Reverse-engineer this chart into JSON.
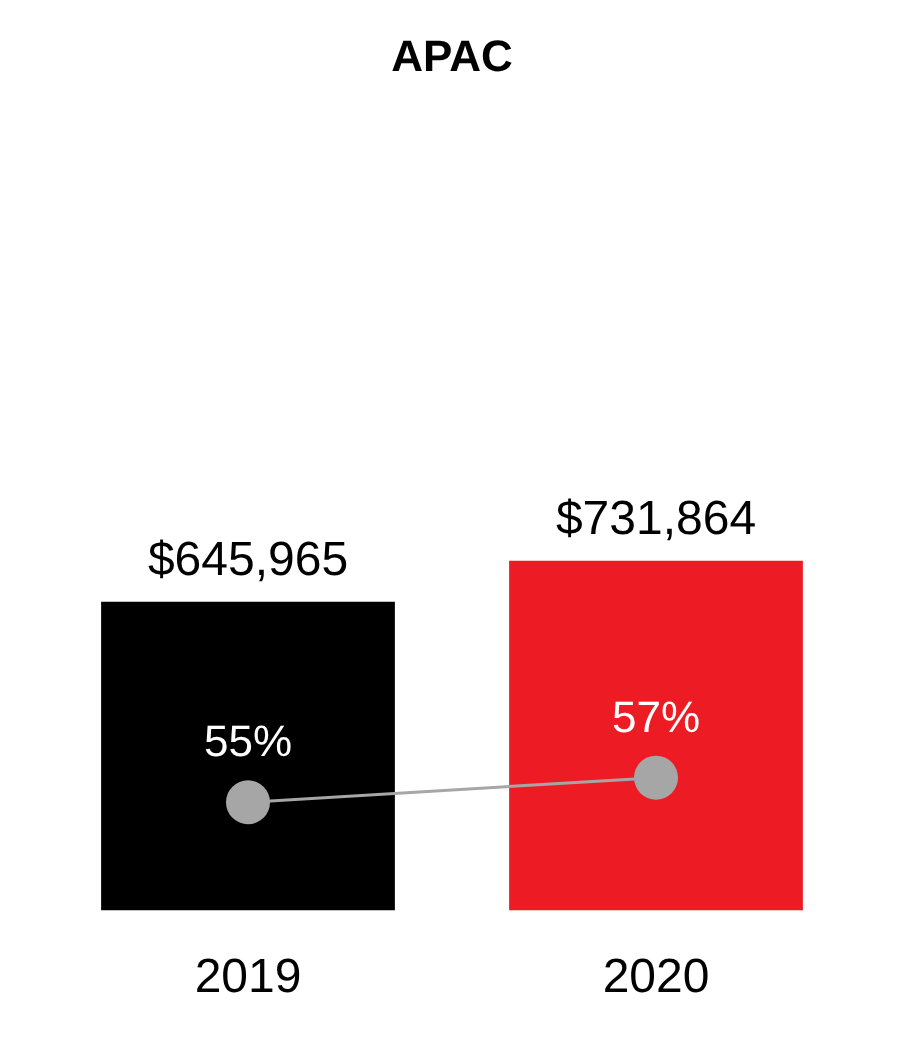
{
  "chart_data": {
    "type": "bar",
    "title": "APAC",
    "categories": [
      "2019",
      "2020"
    ],
    "series": [
      {
        "colors": [
          "#000000",
          "#ed1c24"
        ],
        "values": [
          645965,
          731864
        ],
        "value_labels": [
          "$645,965",
          "$731,864"
        ]
      },
      {
        "type": "line",
        "axis": "y2",
        "color": "#a6a6a6",
        "values": [
          55,
          57
        ],
        "value_labels": [
          "55%",
          "57%"
        ]
      }
    ],
    "tick_labels": "x",
    "grid": false,
    "legend": false,
    "marker": "circle",
    "line_style": "solid"
  }
}
